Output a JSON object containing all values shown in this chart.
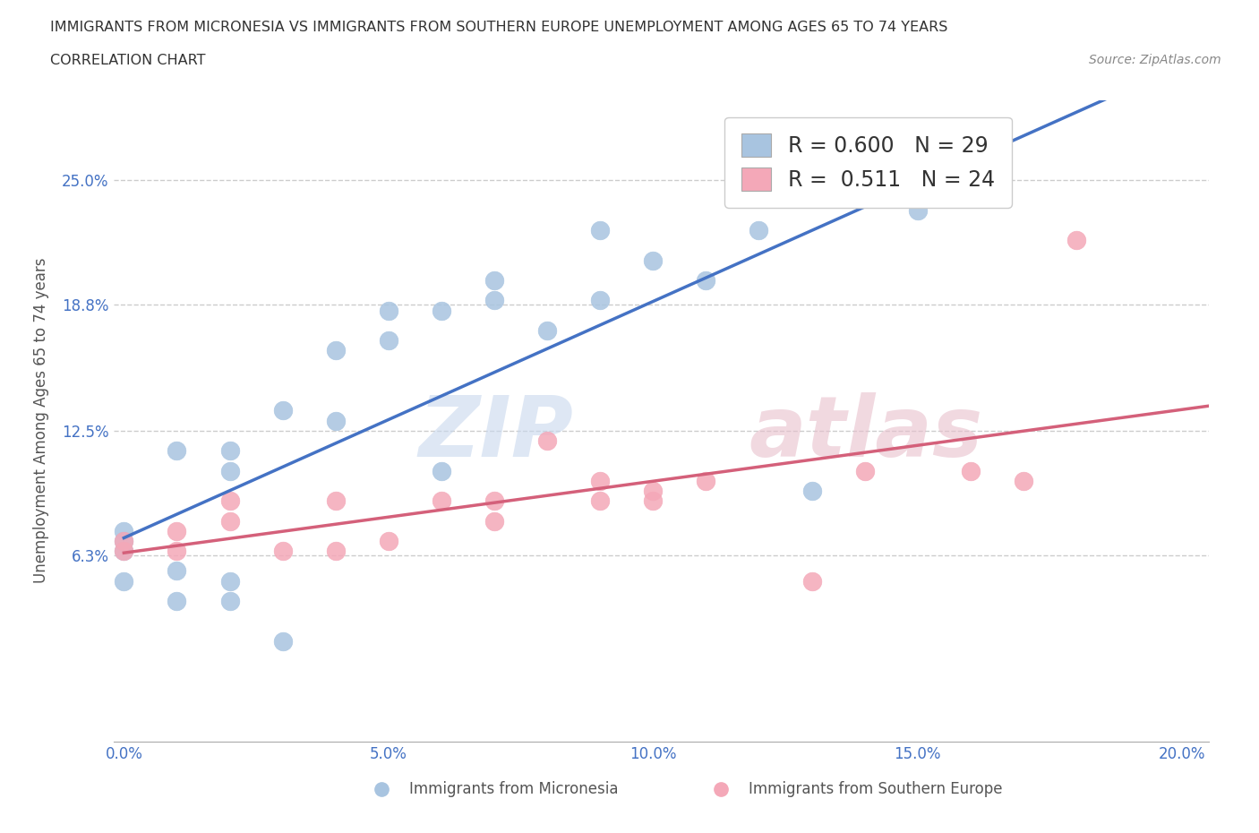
{
  "title_line1": "IMMIGRANTS FROM MICRONESIA VS IMMIGRANTS FROM SOUTHERN EUROPE UNEMPLOYMENT AMONG AGES 65 TO 74 YEARS",
  "title_line2": "CORRELATION CHART",
  "source": "Source: ZipAtlas.com",
  "ylabel": "Unemployment Among Ages 65 to 74 years",
  "xlim": [
    -0.002,
    0.205
  ],
  "ylim": [
    -0.03,
    0.29
  ],
  "xticks": [
    0.0,
    0.05,
    0.1,
    0.15,
    0.2
  ],
  "xticklabels": [
    "0.0%",
    "5.0%",
    "10.0%",
    "15.0%",
    "20.0%"
  ],
  "ytick_positions": [
    0.063,
    0.125,
    0.188,
    0.25
  ],
  "ytick_labels": [
    "6.3%",
    "12.5%",
    "18.8%",
    "25.0%"
  ],
  "micronesia_color": "#a8c4e0",
  "southern_europe_color": "#f4a8b8",
  "micronesia_line_color": "#4472c4",
  "southern_europe_line_color": "#d4607a",
  "R_micronesia": 0.6,
  "N_micronesia": 29,
  "R_southern_europe": 0.511,
  "N_southern_europe": 24,
  "micronesia_x": [
    0.0,
    0.0,
    0.0,
    0.0,
    0.01,
    0.01,
    0.01,
    0.02,
    0.02,
    0.02,
    0.02,
    0.03,
    0.03,
    0.04,
    0.04,
    0.05,
    0.05,
    0.06,
    0.06,
    0.07,
    0.07,
    0.08,
    0.09,
    0.09,
    0.1,
    0.11,
    0.12,
    0.13,
    0.15
  ],
  "micronesia_y": [
    0.065,
    0.07,
    0.075,
    0.05,
    0.04,
    0.055,
    0.115,
    0.04,
    0.05,
    0.105,
    0.115,
    0.02,
    0.135,
    0.13,
    0.165,
    0.17,
    0.185,
    0.105,
    0.185,
    0.19,
    0.2,
    0.175,
    0.19,
    0.225,
    0.21,
    0.2,
    0.225,
    0.095,
    0.235
  ],
  "southern_europe_x": [
    0.0,
    0.0,
    0.01,
    0.01,
    0.02,
    0.02,
    0.03,
    0.04,
    0.04,
    0.05,
    0.06,
    0.07,
    0.07,
    0.08,
    0.09,
    0.09,
    0.1,
    0.1,
    0.11,
    0.13,
    0.14,
    0.16,
    0.17,
    0.18
  ],
  "southern_europe_y": [
    0.065,
    0.07,
    0.065,
    0.075,
    0.08,
    0.09,
    0.065,
    0.065,
    0.09,
    0.07,
    0.09,
    0.08,
    0.09,
    0.12,
    0.09,
    0.1,
    0.09,
    0.095,
    0.1,
    0.05,
    0.105,
    0.105,
    0.1,
    0.22
  ]
}
